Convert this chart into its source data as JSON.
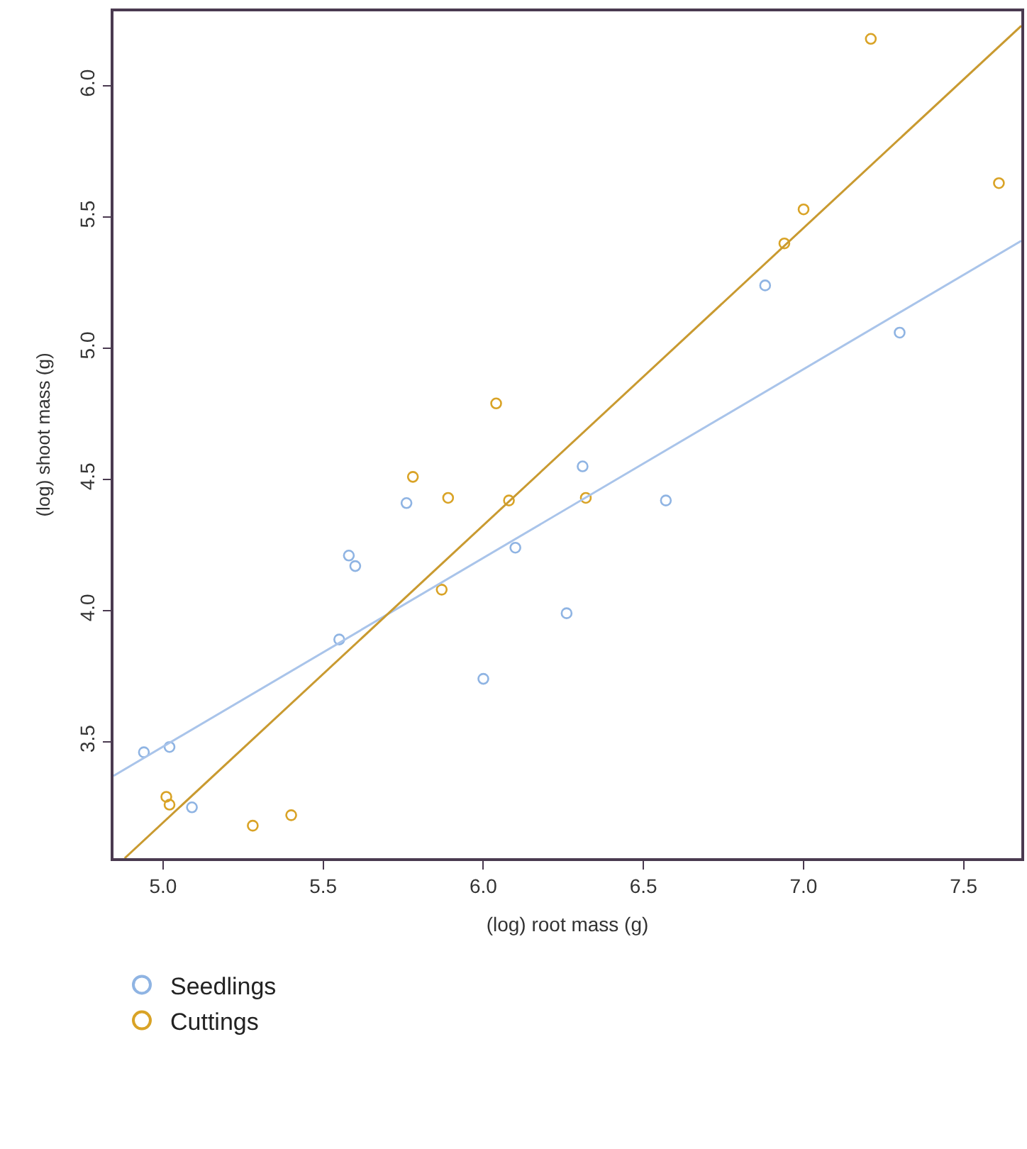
{
  "chart_data": {
    "type": "scatter",
    "xlabel": "(log) root mass (g)",
    "ylabel": "(log) shoot mass (g)",
    "xlim": [
      4.845,
      7.68
    ],
    "ylim": [
      3.056,
      6.285
    ],
    "xticks": [
      {
        "value": 5,
        "label": "5.0"
      },
      5.5,
      {
        "value": 6,
        "label": "6.0"
      },
      6.5,
      {
        "value": 7,
        "label": "7.0"
      },
      7.5
    ],
    "yticks": [
      3.5,
      {
        "value": 4,
        "label": "4.0"
      },
      4.5,
      {
        "value": 5,
        "label": "5.0"
      },
      5.5,
      {
        "value": 6,
        "label": "6.0"
      }
    ],
    "grid": false,
    "legend": "bottom left",
    "series": [
      {
        "name": "Seedlings",
        "color": "#8fb4e3",
        "marker": "circle",
        "x": [
          4.94,
          5.02,
          5.09,
          5.55,
          5.58,
          5.6,
          5.76,
          6.0,
          6.1,
          6.31,
          6.57,
          6.26,
          6.88,
          7.3
        ],
        "values": [
          3.46,
          3.48,
          3.25,
          3.89,
          4.21,
          4.17,
          4.41,
          3.74,
          4.24,
          4.55,
          4.42,
          3.99,
          5.24,
          5.06
        ]
      },
      {
        "name": "Cuttings",
        "color": "#d9a326",
        "marker": "circle",
        "x": [
          5.78,
          5.89,
          6.08,
          5.87,
          5.01,
          5.02,
          5.28,
          5.4,
          6.32,
          6.04,
          7.21,
          7.0,
          6.94,
          7.61
        ],
        "values": [
          4.51,
          4.43,
          4.42,
          4.08,
          3.29,
          3.26,
          3.18,
          3.22,
          4.43,
          4.79,
          6.18,
          5.53,
          5.4,
          5.63
        ]
      },
      {
        "type": "line",
        "marker": "none",
        "color": "#a9c4ea",
        "x": [
          4.845,
          7.68
        ],
        "values": [
          3.37,
          5.41
        ]
      },
      {
        "type": "line",
        "marker": "none",
        "color": "#c99a30",
        "x": [
          4.88,
          7.68
        ],
        "values": [
          3.056,
          6.23
        ]
      }
    ]
  }
}
